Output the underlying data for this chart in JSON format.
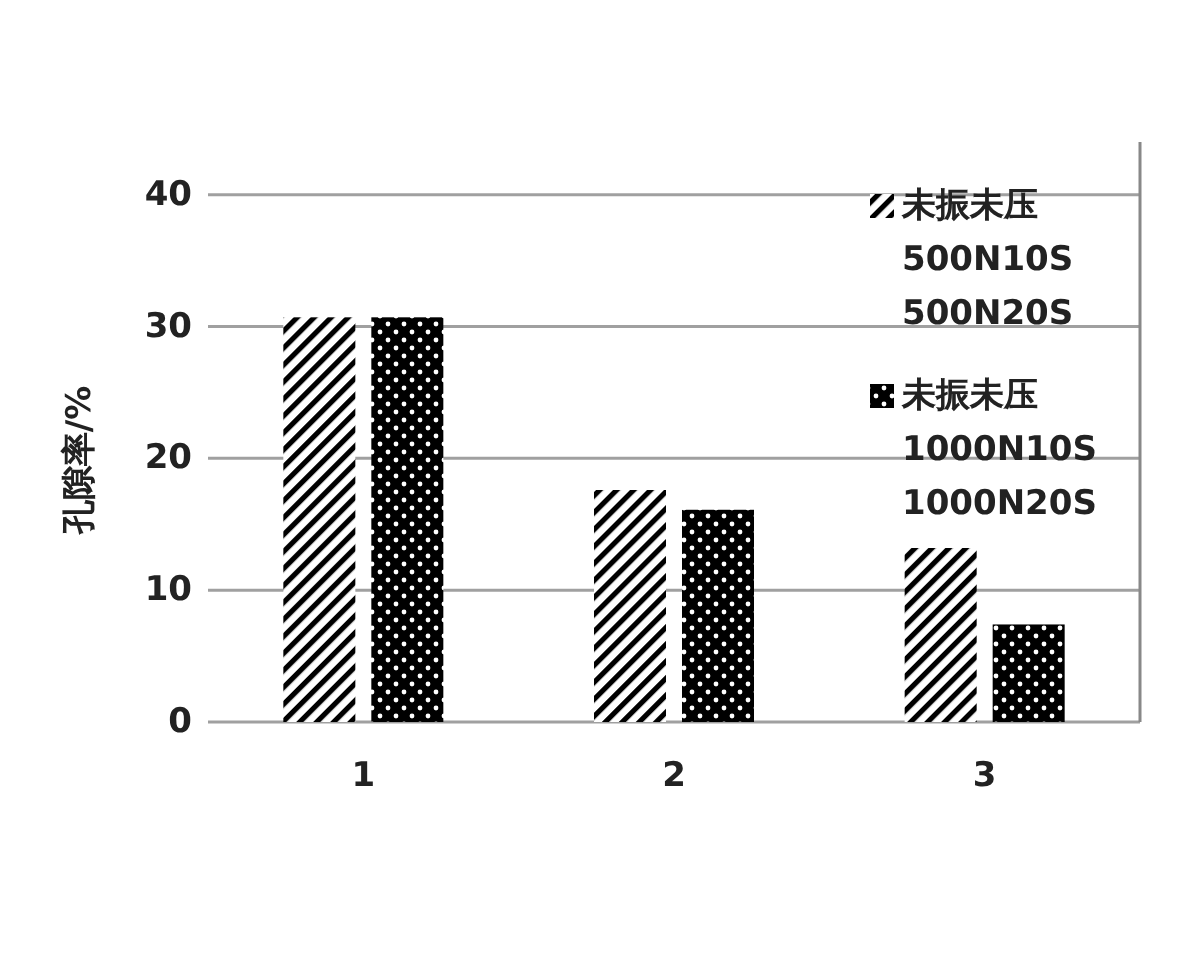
{
  "chart_data": {
    "type": "bar",
    "ylabel": "孔隙率/%",
    "categories": [
      "1",
      "2",
      "3"
    ],
    "series": [
      {
        "name": "未振未压\n500N10S\n500N20S",
        "color": "#000000",
        "values": [
          30.7,
          17.6,
          13.2
        ]
      },
      {
        "name": "未振未压\n1000N10S\n1000N20S",
        "color": "#000000",
        "values": [
          30.7,
          16.1,
          7.4
        ]
      }
    ],
    "ylim": [
      0,
      44
    ],
    "yticks": [
      0,
      10,
      20,
      30,
      40
    ],
    "grid": "y",
    "legend": "top right"
  }
}
